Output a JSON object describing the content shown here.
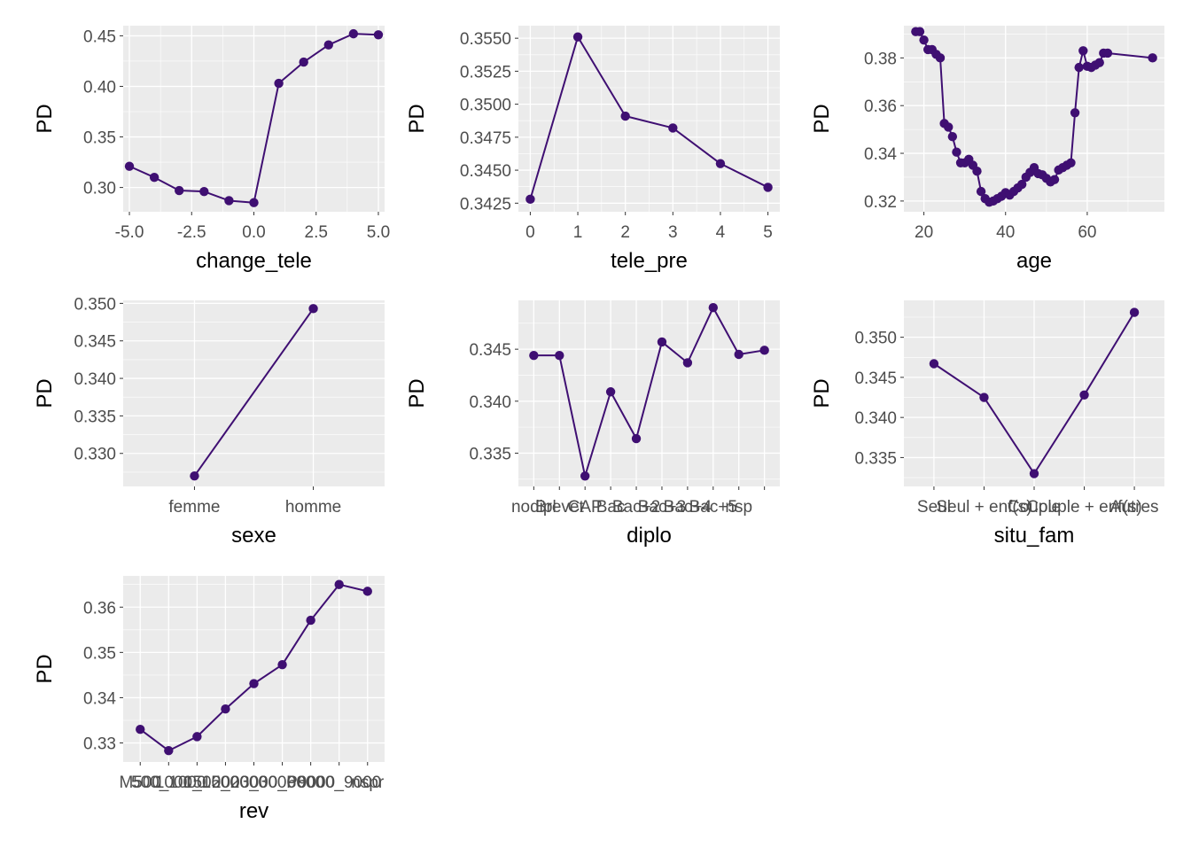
{
  "colors": {
    "panel_bg": "#ebebeb",
    "grid_major": "#ffffff",
    "series": "#3f0f72",
    "axis_text": "#4d4d4d",
    "title_text": "#000000"
  },
  "chart_data": [
    {
      "type": "line",
      "xlabel": "change_tele",
      "ylabel": "PD",
      "x_type": "numeric",
      "xlim": [
        -5.25,
        5.25
      ],
      "ylim": [
        0.276,
        0.46
      ],
      "x_ticks": [
        -5.0,
        -2.5,
        0.0,
        2.5,
        5.0
      ],
      "x_tick_labels": [
        "-5.0",
        "-2.5",
        "0.0",
        "2.5",
        "5.0"
      ],
      "y_ticks": [
        0.3,
        0.35,
        0.4,
        0.45
      ],
      "y_tick_labels": [
        "0.30",
        "0.35",
        "0.40",
        "0.45"
      ],
      "x": [
        -5,
        -4,
        -3,
        -2,
        -1,
        0,
        1,
        2,
        3,
        4,
        5
      ],
      "y": [
        0.321,
        0.31,
        0.297,
        0.296,
        0.287,
        0.285,
        0.403,
        0.424,
        0.441,
        0.452,
        0.451
      ]
    },
    {
      "type": "line",
      "xlabel": "tele_pre",
      "ylabel": "PD",
      "x_type": "numeric",
      "xlim": [
        -0.25,
        5.25
      ],
      "ylim": [
        0.34185,
        0.35595
      ],
      "x_ticks": [
        0,
        1,
        2,
        3,
        4,
        5
      ],
      "x_tick_labels": [
        "0",
        "1",
        "2",
        "3",
        "4",
        "5"
      ],
      "y_ticks": [
        0.3425,
        0.345,
        0.3475,
        0.35,
        0.3525,
        0.355
      ],
      "y_tick_labels": [
        "0.3425",
        "0.3450",
        "0.3475",
        "0.3500",
        "0.3525",
        "0.3550"
      ],
      "x": [
        0,
        1,
        2,
        3,
        4,
        5
      ],
      "y": [
        0.3428,
        0.3551,
        0.3491,
        0.3482,
        0.3455,
        0.3437
      ]
    },
    {
      "type": "line",
      "xlabel": "age",
      "ylabel": "PD",
      "x_type": "numeric",
      "xlim": [
        15.1,
        78.9
      ],
      "ylim": [
        0.3155,
        0.3935
      ],
      "x_ticks": [
        20,
        40,
        60
      ],
      "x_tick_labels": [
        "20",
        "40",
        "60"
      ],
      "y_ticks": [
        0.32,
        0.34,
        0.36,
        0.38
      ],
      "y_tick_labels": [
        "0.32",
        "0.34",
        "0.36",
        "0.38"
      ],
      "x": [
        18,
        19,
        20,
        21,
        22,
        23,
        24,
        25,
        26,
        27,
        28,
        29,
        30,
        31,
        32,
        33,
        34,
        35,
        36,
        37,
        38,
        39,
        40,
        41,
        42,
        43,
        44,
        45,
        46,
        47,
        48,
        49,
        50,
        51,
        52,
        53,
        54,
        55,
        56,
        57,
        58,
        59,
        60,
        61,
        62,
        63,
        64,
        65,
        76
      ],
      "y": [
        0.391,
        0.391,
        0.3875,
        0.3835,
        0.3835,
        0.3815,
        0.38,
        0.3525,
        0.351,
        0.347,
        0.3405,
        0.336,
        0.336,
        0.3375,
        0.335,
        0.3325,
        0.324,
        0.321,
        0.3195,
        0.32,
        0.321,
        0.322,
        0.3235,
        0.3225,
        0.324,
        0.3255,
        0.327,
        0.33,
        0.332,
        0.334,
        0.3315,
        0.331,
        0.3295,
        0.328,
        0.329,
        0.333,
        0.334,
        0.335,
        0.336,
        0.357,
        0.376,
        0.383,
        0.3765,
        0.376,
        0.377,
        0.378,
        0.382,
        0.382,
        0.38
      ]
    },
    {
      "type": "line",
      "xlabel": "sexe",
      "ylabel": "PD",
      "x_type": "categorical",
      "categories": [
        "femme",
        "homme"
      ],
      "ylim": [
        0.3256,
        0.3504
      ],
      "y_ticks": [
        0.33,
        0.335,
        0.34,
        0.345,
        0.35
      ],
      "y_tick_labels": [
        "0.330",
        "0.335",
        "0.340",
        "0.345",
        "0.350"
      ],
      "values": [
        0.327,
        0.3493
      ]
    },
    {
      "type": "line",
      "xlabel": "diplo",
      "ylabel": "PD",
      "x_type": "categorical",
      "categories": [
        "nodipl",
        "Brevet",
        "CAP",
        "Bac",
        "Bac+2",
        "Bac+3",
        "Bac+4",
        "Bac+5",
        "nsp",
        ""
      ],
      "ylim": [
        0.3318,
        0.3497
      ],
      "y_ticks": [
        0.335,
        0.34,
        0.345
      ],
      "y_tick_labels": [
        "0.335",
        "0.340",
        "0.345"
      ],
      "values": [
        0.3444,
        0.3444,
        0.3328,
        0.3409,
        0.3364,
        0.3457,
        0.3437,
        0.349,
        0.3445,
        0.3449
      ]
    },
    {
      "type": "line",
      "xlabel": "situ_fam",
      "ylabel": "PD",
      "x_type": "categorical",
      "categories": [
        "Seul",
        "Seul + enf(s)",
        "Couple",
        "Couple + enf(s)",
        "Autres"
      ],
      "ylim": [
        0.3314,
        0.3546
      ],
      "y_ticks": [
        0.335,
        0.34,
        0.345,
        0.35
      ],
      "y_tick_labels": [
        "0.335",
        "0.340",
        "0.345",
        "0.350"
      ],
      "values": [
        0.3467,
        0.3425,
        0.333,
        0.3428,
        0.3531
      ]
    },
    {
      "type": "line",
      "xlabel": "rev",
      "ylabel": "PD",
      "x_type": "categorical",
      "categories": [
        "M500",
        "500_1000",
        "1000_1500",
        "1500_2000",
        "2000_3000",
        "3000_6000",
        "P9000",
        "6000_9000",
        "nspr"
      ],
      "ylim": [
        0.3258,
        0.3669
      ],
      "y_ticks": [
        0.33,
        0.34,
        0.35,
        0.36
      ],
      "y_tick_labels": [
        "0.33",
        "0.34",
        "0.35",
        "0.36"
      ],
      "values": [
        0.333,
        0.3283,
        0.3314,
        0.3375,
        0.3431,
        0.3473,
        0.3571,
        0.365,
        0.3635
      ]
    }
  ]
}
